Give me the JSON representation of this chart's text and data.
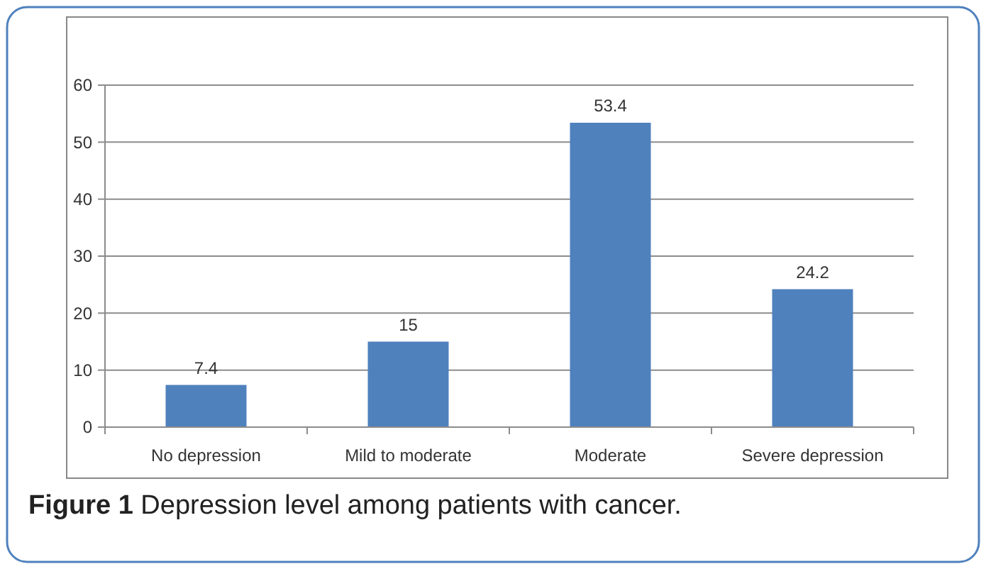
{
  "chart_data": {
    "type": "bar",
    "categories": [
      "No depression",
      "Mild to moderate",
      "Moderate",
      "Severe depression"
    ],
    "values": [
      7.4,
      15,
      53.4,
      24.2
    ],
    "color": "#4f81bd",
    "ylim": [
      0,
      60
    ],
    "yticks": [
      0,
      10,
      20,
      30,
      40,
      50,
      60
    ],
    "grid": "y",
    "data_labels": true,
    "annotations": [
      "Figure 1",
      "Depression level among patients with cancer."
    ]
  }
}
